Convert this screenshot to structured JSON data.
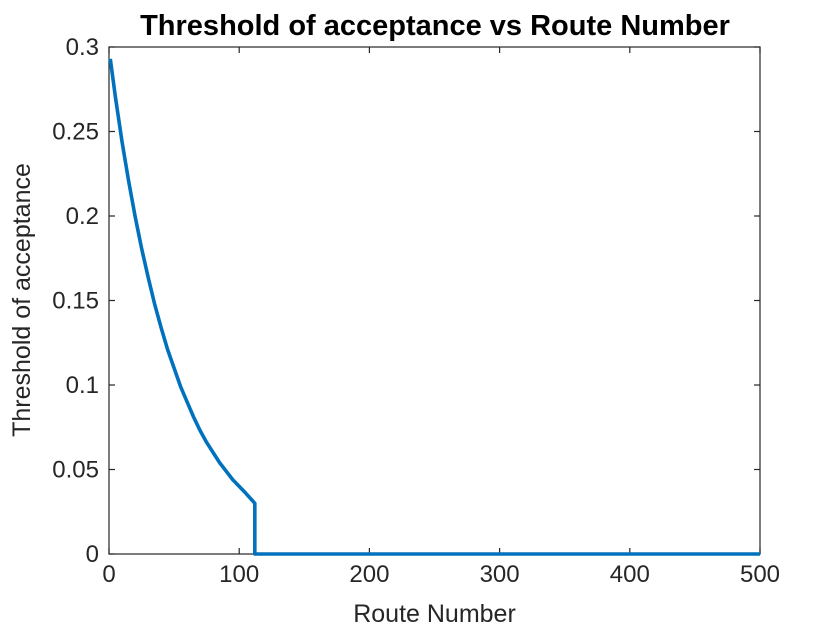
{
  "chart_data": {
    "type": "line",
    "title": "Threshold of acceptance vs Route Number",
    "xlabel": "Route Number",
    "ylabel": "Threshold of acceptance",
    "xlim": [
      0,
      500
    ],
    "ylim": [
      0,
      0.3
    ],
    "xticks": [
      0,
      100,
      200,
      300,
      400,
      500
    ],
    "xtick_labels": [
      "0",
      "100",
      "200",
      "300",
      "400",
      "500"
    ],
    "yticks": [
      0,
      0.05,
      0.1,
      0.15,
      0.2,
      0.25,
      0.3
    ],
    "ytick_labels": [
      "0",
      "0.05",
      "0.1",
      "0.15",
      "0.2",
      "0.25",
      "0.3"
    ],
    "grid": false,
    "series": [
      {
        "color": "#0072BD",
        "x": [
          1,
          5,
          10,
          15,
          20,
          25,
          30,
          35,
          40,
          45,
          50,
          55,
          60,
          65,
          70,
          75,
          80,
          85,
          90,
          95,
          100,
          105,
          112,
          112,
          113,
          150,
          200,
          250,
          300,
          350,
          400,
          450,
          500
        ],
        "y": [
          0.293,
          0.27,
          0.244,
          0.221,
          0.2,
          0.181,
          0.164,
          0.148,
          0.134,
          0.121,
          0.11,
          0.099,
          0.09,
          0.081,
          0.073,
          0.066,
          0.06,
          0.054,
          0.049,
          0.044,
          0.04,
          0.036,
          0.03,
          0.0,
          0.0,
          0.0,
          0.0,
          0.0,
          0.0,
          0.0,
          0.0,
          0.0,
          0.0
        ]
      }
    ]
  }
}
